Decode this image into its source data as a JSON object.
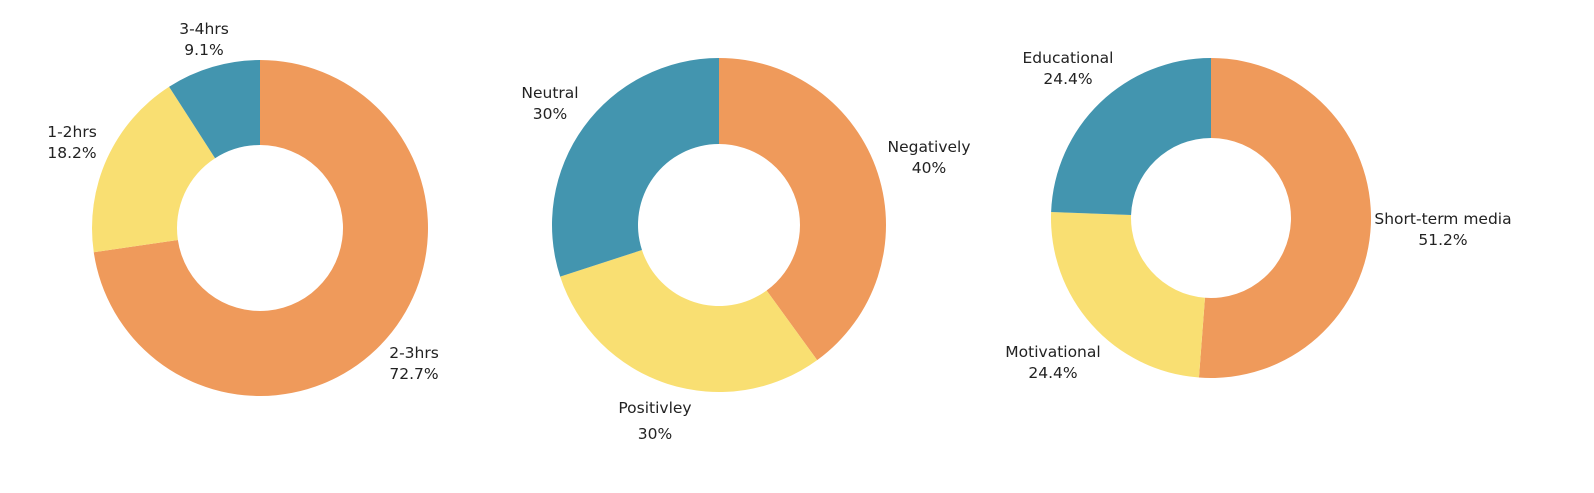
{
  "chart_data": [
    {
      "type": "pie",
      "donut": true,
      "title": "",
      "legend": "none",
      "slices": [
        {
          "label": "2-3hrs",
          "value": 72.7,
          "value_label": "72.7%",
          "color": "#EF9A5B"
        },
        {
          "label": "1-2hrs",
          "value": 18.2,
          "value_label": "18.2%",
          "color": "#F9DF72"
        },
        {
          "label": "3-4hrs",
          "value": 9.1,
          "value_label": "9.1%",
          "color": "#4395AF"
        }
      ]
    },
    {
      "type": "pie",
      "donut": true,
      "title": "",
      "legend": "none",
      "slices": [
        {
          "label": "Negatively",
          "value": 40,
          "value_label": "40%",
          "color": "#EF9A5B"
        },
        {
          "label": "Positivley",
          "value": 30,
          "value_label": "30%",
          "color": "#F9DF72"
        },
        {
          "label": "Neutral",
          "value": 30,
          "value_label": "30%",
          "color": "#4395AF"
        }
      ]
    },
    {
      "type": "pie",
      "donut": true,
      "title": "",
      "legend": "none",
      "slices": [
        {
          "label": "Short-term media",
          "value": 51.2,
          "value_label": "51.2%",
          "color": "#EF9A5B"
        },
        {
          "label": "Motivational",
          "value": 24.4,
          "value_label": "24.4%",
          "color": "#F9DF72"
        },
        {
          "label": "Educational",
          "value": 24.4,
          "value_label": "24.4%",
          "color": "#4395AF"
        }
      ]
    }
  ]
}
